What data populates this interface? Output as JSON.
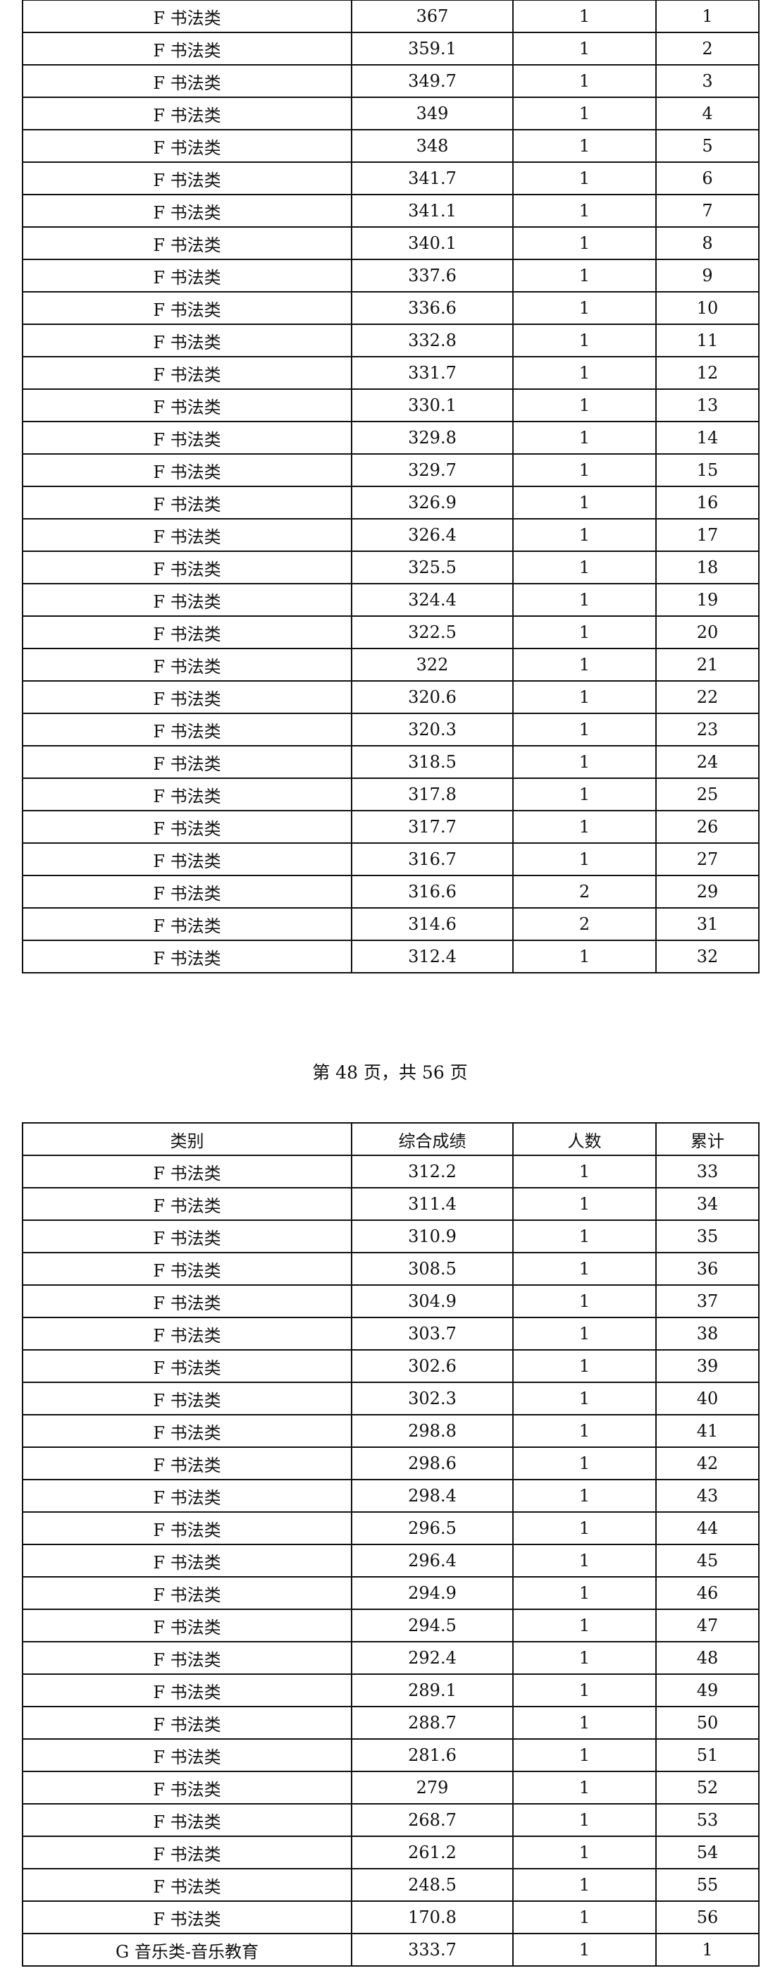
{
  "table1": {
    "rows": [
      [
        "F 书法类",
        "367",
        "1",
        "1"
      ],
      [
        "F 书法类",
        "359.1",
        "1",
        "2"
      ],
      [
        "F 书法类",
        "349.7",
        "1",
        "3"
      ],
      [
        "F 书法类",
        "349",
        "1",
        "4"
      ],
      [
        "F 书法类",
        "348",
        "1",
        "5"
      ],
      [
        "F 书法类",
        "341.7",
        "1",
        "6"
      ],
      [
        "F 书法类",
        "341.1",
        "1",
        "7"
      ],
      [
        "F 书法类",
        "340.1",
        "1",
        "8"
      ],
      [
        "F 书法类",
        "337.6",
        "1",
        "9"
      ],
      [
        "F 书法类",
        "336.6",
        "1",
        "10"
      ],
      [
        "F 书法类",
        "332.8",
        "1",
        "11"
      ],
      [
        "F 书法类",
        "331.7",
        "1",
        "12"
      ],
      [
        "F 书法类",
        "330.1",
        "1",
        "13"
      ],
      [
        "F 书法类",
        "329.8",
        "1",
        "14"
      ],
      [
        "F 书法类",
        "329.7",
        "1",
        "15"
      ],
      [
        "F 书法类",
        "326.9",
        "1",
        "16"
      ],
      [
        "F 书法类",
        "326.4",
        "1",
        "17"
      ],
      [
        "F 书法类",
        "325.5",
        "1",
        "18"
      ],
      [
        "F 书法类",
        "324.4",
        "1",
        "19"
      ],
      [
        "F 书法类",
        "322.5",
        "1",
        "20"
      ],
      [
        "F 书法类",
        "322",
        "1",
        "21"
      ],
      [
        "F 书法类",
        "320.6",
        "1",
        "22"
      ],
      [
        "F 书法类",
        "320.3",
        "1",
        "23"
      ],
      [
        "F 书法类",
        "318.5",
        "1",
        "24"
      ],
      [
        "F 书法类",
        "317.8",
        "1",
        "25"
      ],
      [
        "F 书法类",
        "317.7",
        "1",
        "26"
      ],
      [
        "F 书法类",
        "316.7",
        "1",
        "27"
      ],
      [
        "F 书法类",
        "316.6",
        "2",
        "29"
      ],
      [
        "F 书法类",
        "314.6",
        "2",
        "31"
      ],
      [
        "F 书法类",
        "312.4",
        "1",
        "32"
      ]
    ]
  },
  "footer": "第 48 页，共 56 页",
  "table2": {
    "header": [
      "类别",
      "综合成绩",
      "人数",
      "累计"
    ],
    "rows": [
      [
        "F 书法类",
        "312.2",
        "1",
        "33"
      ],
      [
        "F 书法类",
        "311.4",
        "1",
        "34"
      ],
      [
        "F 书法类",
        "310.9",
        "1",
        "35"
      ],
      [
        "F 书法类",
        "308.5",
        "1",
        "36"
      ],
      [
        "F 书法类",
        "304.9",
        "1",
        "37"
      ],
      [
        "F 书法类",
        "303.7",
        "1",
        "38"
      ],
      [
        "F 书法类",
        "302.6",
        "1",
        "39"
      ],
      [
        "F 书法类",
        "302.3",
        "1",
        "40"
      ],
      [
        "F 书法类",
        "298.8",
        "1",
        "41"
      ],
      [
        "F 书法类",
        "298.6",
        "1",
        "42"
      ],
      [
        "F 书法类",
        "298.4",
        "1",
        "43"
      ],
      [
        "F 书法类",
        "296.5",
        "1",
        "44"
      ],
      [
        "F 书法类",
        "296.4",
        "1",
        "45"
      ],
      [
        "F 书法类",
        "294.9",
        "1",
        "46"
      ],
      [
        "F 书法类",
        "294.5",
        "1",
        "47"
      ],
      [
        "F 书法类",
        "292.4",
        "1",
        "48"
      ],
      [
        "F 书法类",
        "289.1",
        "1",
        "49"
      ],
      [
        "F 书法类",
        "288.7",
        "1",
        "50"
      ],
      [
        "F 书法类",
        "281.6",
        "1",
        "51"
      ],
      [
        "F 书法类",
        "279",
        "1",
        "52"
      ],
      [
        "F 书法类",
        "268.7",
        "1",
        "53"
      ],
      [
        "F 书法类",
        "261.2",
        "1",
        "54"
      ],
      [
        "F 书法类",
        "248.5",
        "1",
        "55"
      ],
      [
        "F 书法类",
        "170.8",
        "1",
        "56"
      ],
      [
        "G 音乐类-音乐教育",
        "333.7",
        "1",
        "1"
      ]
    ]
  }
}
